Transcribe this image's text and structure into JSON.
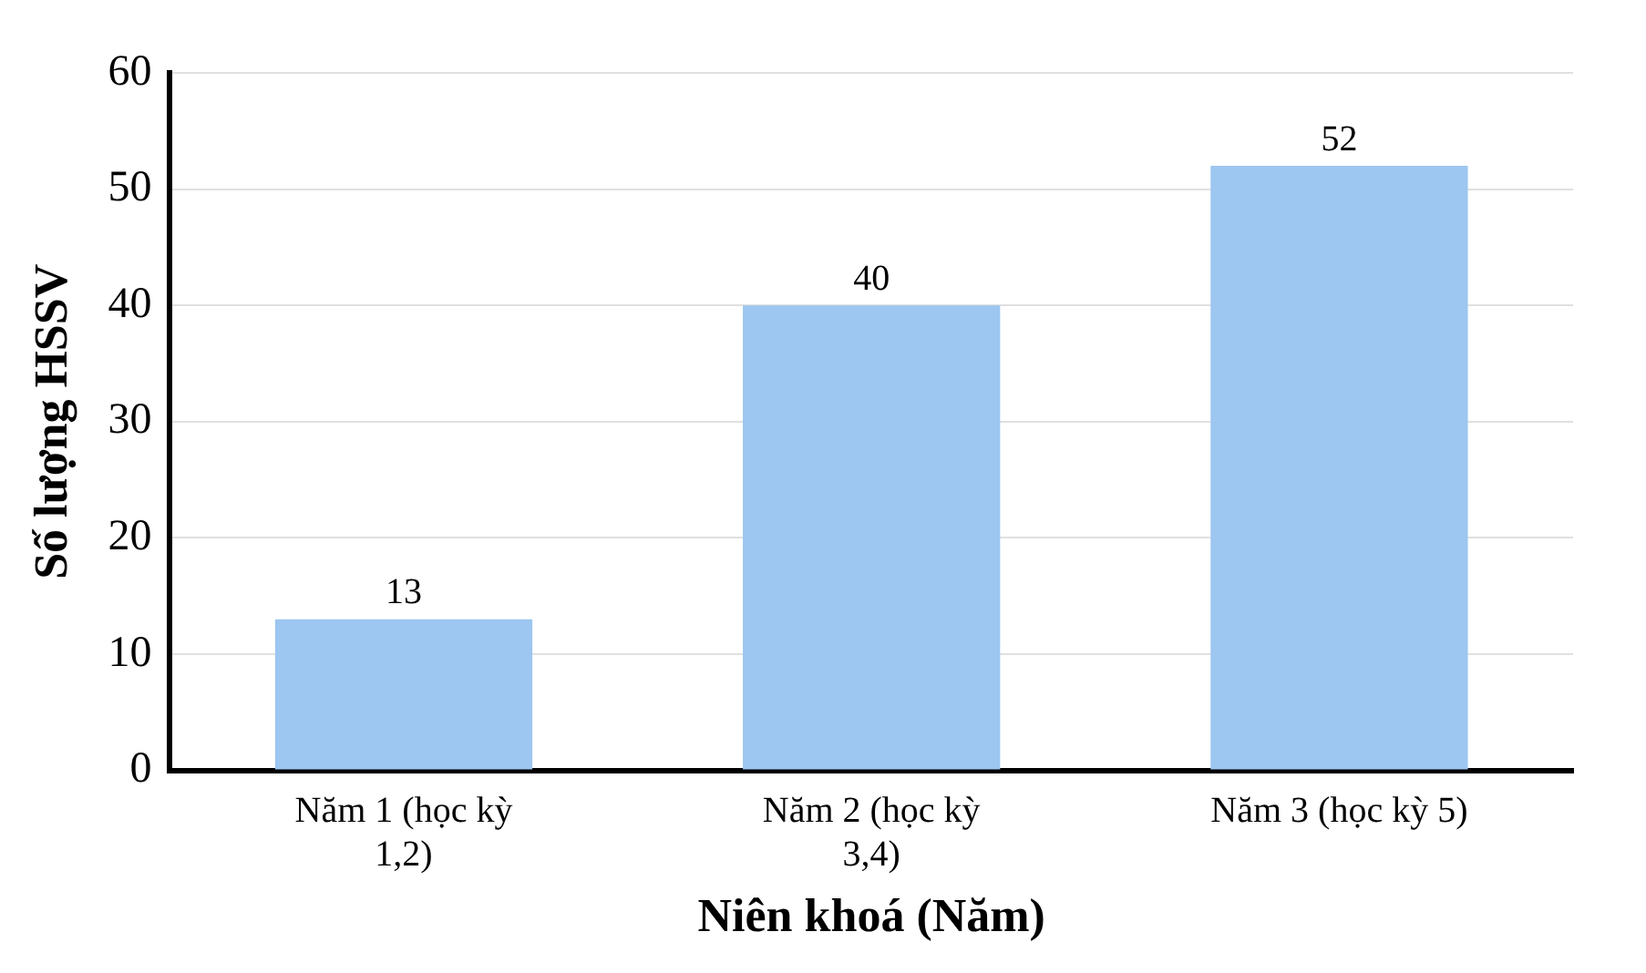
{
  "chart_data": {
    "type": "bar",
    "xlabel": "Niên khoá (Năm)",
    "ylabel": "Số lượng HSSV",
    "categories": [
      "Năm 1 (học kỳ 1,2)",
      "Năm 2 (học kỳ 3,4)",
      "Năm 3 (học kỳ 5)"
    ],
    "values": [
      13,
      40,
      52
    ],
    "color": "#9dc6f0",
    "ylim": [
      0,
      60
    ],
    "yticks": [
      0,
      10,
      20,
      30,
      40,
      50,
      60
    ],
    "grid": "y",
    "data_labels": true
  }
}
